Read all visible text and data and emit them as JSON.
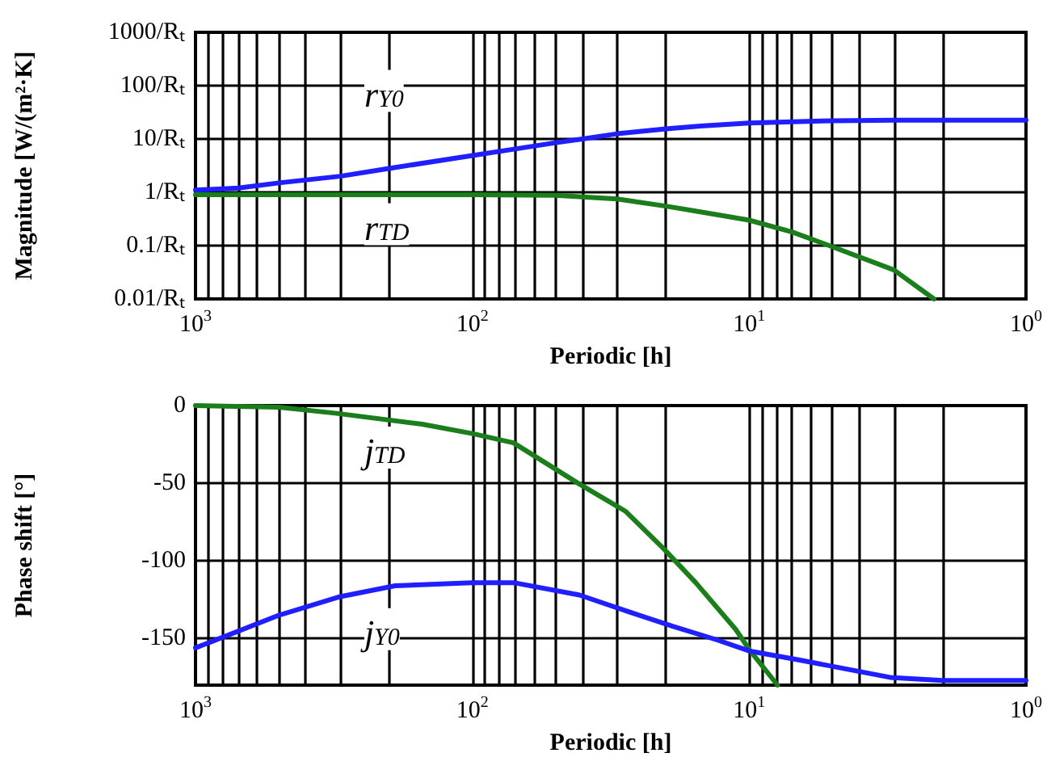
{
  "chart_data": [
    {
      "type": "line",
      "xlabel": "Periodic [h]",
      "ylabel": "Magnitude [W/(m²·K]",
      "log": "xy",
      "grid": true,
      "xlim": [
        1000,
        1
      ],
      "xticks": [
        {
          "value": 1000,
          "label": "10$^{3}$"
        },
        {
          "value": 900,
          "label": null
        },
        {
          "value": 800,
          "label": null
        },
        {
          "value": 700,
          "label": null
        },
        {
          "value": 600,
          "label": null
        },
        {
          "value": 500,
          "label": null
        },
        {
          "value": 400,
          "label": null
        },
        {
          "value": 300,
          "label": null
        },
        {
          "value": 200,
          "label": null
        },
        {
          "value": 100,
          "label": "10$^{2}$"
        },
        {
          "value": 90,
          "label": null
        },
        {
          "value": 80,
          "label": null
        },
        {
          "value": 70,
          "label": null
        },
        {
          "value": 60,
          "label": null
        },
        {
          "value": 50,
          "label": null
        },
        {
          "value": 40,
          "label": null
        },
        {
          "value": 30,
          "label": null
        },
        {
          "value": 20,
          "label": null
        },
        {
          "value": 10,
          "label": "10$^{1}$"
        },
        {
          "value": 9,
          "label": null
        },
        {
          "value": 8,
          "label": null
        },
        {
          "value": 7,
          "label": null
        },
        {
          "value": 6,
          "label": null
        },
        {
          "value": 5,
          "label": null
        },
        {
          "value": 4,
          "label": null
        },
        {
          "value": 3,
          "label": null
        },
        {
          "value": 2,
          "label": null
        },
        {
          "value": 1,
          "label": "10$^{0}$"
        }
      ],
      "ylim": [
        0.01,
        1000
      ],
      "yticks": [
        {
          "value": 0.01,
          "label": "0.01/Rₜ"
        },
        {
          "value": 0.1,
          "label": "0.1/Rₜ"
        },
        {
          "value": 1,
          "label": "1/Rₜ"
        },
        {
          "value": 10,
          "label": "10/Rₜ"
        },
        {
          "value": 100,
          "label": "100/Rₜ"
        },
        {
          "value": 1000,
          "label": "1000/Rₜ"
        }
      ],
      "series": [
        {
          "color": "#1f1fff",
          "x": [
            1000,
            700,
            500,
            300,
            200,
            100,
            70,
            50,
            40,
            30,
            20,
            15,
            10,
            7,
            5,
            3,
            2,
            1
          ],
          "values": [
            1.1,
            1.2,
            1.5,
            2.0,
            2.8,
            4.9,
            6.5,
            8.5,
            10,
            12.5,
            15.5,
            17.5,
            20,
            21,
            22,
            22.5,
            22.5,
            22.5
          ]
        },
        {
          "color": "#1a7f1a",
          "x": [
            1000,
            100,
            50,
            30,
            20,
            15,
            10,
            7,
            5,
            3,
            2.15
          ],
          "values": [
            0.9,
            0.9,
            0.88,
            0.75,
            0.55,
            0.43,
            0.3,
            0.18,
            0.095,
            0.035,
            0.01
          ]
        }
      ],
      "annotations": [
        "r$_{Y0}$",
        "r$_{TD}$"
      ]
    },
    {
      "type": "line",
      "xlabel": "Periodic [h]",
      "ylabel": "Phase shift [°]",
      "log": "x",
      "grid": true,
      "xlim": [
        1000,
        1
      ],
      "xticks": [
        {
          "value": 1000,
          "label": "10$^{3}$"
        },
        {
          "value": 900,
          "label": null
        },
        {
          "value": 800,
          "label": null
        },
        {
          "value": 700,
          "label": null
        },
        {
          "value": 600,
          "label": null
        },
        {
          "value": 500,
          "label": null
        },
        {
          "value": 400,
          "label": null
        },
        {
          "value": 300,
          "label": null
        },
        {
          "value": 200,
          "label": null
        },
        {
          "value": 100,
          "label": "10$^{2}$"
        },
        {
          "value": 90,
          "label": null
        },
        {
          "value": 80,
          "label": null
        },
        {
          "value": 70,
          "label": null
        },
        {
          "value": 60,
          "label": null
        },
        {
          "value": 50,
          "label": null
        },
        {
          "value": 40,
          "label": null
        },
        {
          "value": 30,
          "label": null
        },
        {
          "value": 20,
          "label": null
        },
        {
          "value": 10,
          "label": "10$^{1}$"
        },
        {
          "value": 9,
          "label": null
        },
        {
          "value": 8,
          "label": null
        },
        {
          "value": 7,
          "label": null
        },
        {
          "value": 6,
          "label": null
        },
        {
          "value": 5,
          "label": null
        },
        {
          "value": 4,
          "label": null
        },
        {
          "value": 3,
          "label": null
        },
        {
          "value": 2,
          "label": null
        },
        {
          "value": 1,
          "label": "10$^{0}$"
        }
      ],
      "ylim": [
        -180,
        0
      ],
      "yticks": [
        -150,
        -100,
        -50,
        0
      ],
      "series": [
        {
          "color": "#1a7f1a",
          "x": [
            1000,
            500,
            309,
            152,
            100,
            71,
            41.5,
            28,
            20.4,
            15.6,
            11.2,
            10,
            7.9
          ],
          "values": [
            0,
            -1,
            -5,
            -12,
            -18,
            -24,
            -50,
            -68,
            -92,
            -114,
            -144,
            -157,
            -180
          ]
        },
        {
          "color": "#1f1fff",
          "x": [
            1000,
            500,
            300,
            190,
            100,
            71,
            41,
            27,
            19,
            13,
            10,
            6.5,
            3.1,
            2,
            1
          ],
          "values": [
            -156,
            -135,
            -123,
            -116,
            -114,
            -114,
            -122,
            -133,
            -142,
            -151,
            -158,
            -164,
            -175,
            -177,
            -177
          ]
        }
      ],
      "annotations": [
        "j$_{TD}$",
        "j$_{Y0}$"
      ]
    }
  ]
}
